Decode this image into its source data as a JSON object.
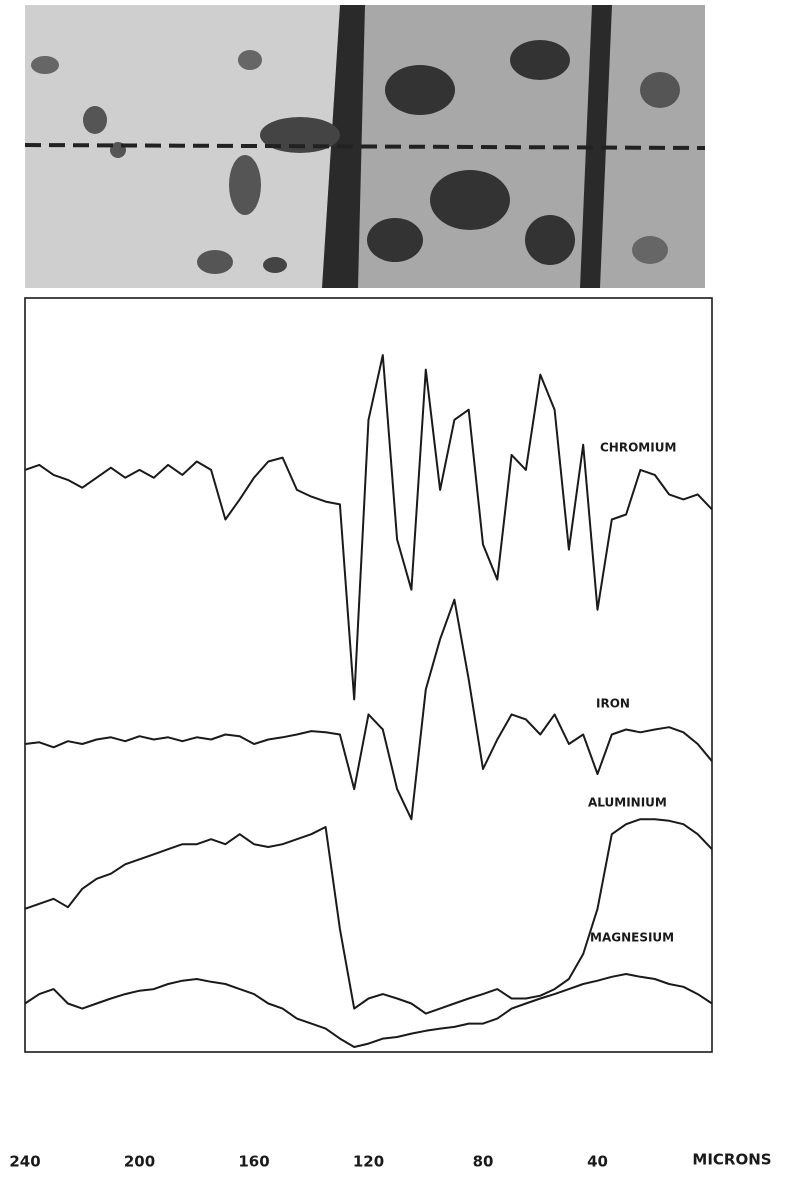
{
  "chart_data": {
    "type": "line",
    "xlabel": "MICRONS",
    "x": [
      240,
      235,
      230,
      225,
      220,
      215,
      210,
      205,
      200,
      195,
      190,
      185,
      180,
      175,
      170,
      165,
      160,
      155,
      150,
      145,
      140,
      135,
      130,
      125,
      120,
      115,
      110,
      105,
      100,
      95,
      90,
      85,
      80,
      75,
      70,
      65,
      60,
      55,
      50,
      45,
      40,
      35,
      30,
      25,
      20,
      15,
      10,
      5,
      0
    ],
    "xlim": [
      240,
      0
    ],
    "xticks": [
      240,
      200,
      160,
      120,
      80,
      40
    ],
    "ylim": [
      -35,
      100
    ],
    "series": [
      {
        "name": "CHROMIUM",
        "color": "#1a1a1a",
        "values": [
          69.5,
          70.4,
          68.6,
          67.7,
          66.3,
          68.1,
          69.9,
          68.1,
          69.5,
          68.1,
          70.4,
          68.6,
          71.0,
          69.5,
          60.6,
          64.2,
          68.1,
          71.0,
          71.7,
          65.9,
          64.7,
          63.8,
          63.3,
          28.3,
          78.5,
          90.1,
          57.0,
          48.0,
          87.5,
          65.9,
          78.5,
          80.3,
          56.1,
          49.8,
          72.2,
          69.5,
          86.6,
          80.3,
          55.2,
          74.0,
          44.4,
          60.6,
          61.5,
          69.5,
          68.6,
          65.1,
          64.2,
          65.1,
          62.4
        ]
      },
      {
        "name": "IRON",
        "color": "#1a1a1a",
        "values": [
          20.3,
          20.6,
          19.7,
          20.8,
          20.3,
          21.1,
          21.5,
          20.8,
          21.7,
          21.1,
          21.5,
          20.8,
          21.5,
          21.1,
          22.0,
          21.7,
          20.3,
          21.1,
          21.5,
          22.0,
          22.6,
          22.4,
          22.0,
          12.2,
          25.6,
          22.9,
          12.2,
          6.8,
          30.1,
          39.1,
          46.2,
          31.9,
          15.8,
          21.1,
          25.6,
          24.7,
          22.0,
          25.6,
          20.3,
          22.0,
          14.9,
          22.0,
          22.9,
          22.4,
          22.9,
          23.3,
          22.4,
          20.3,
          17.2
        ]
      },
      {
        "name": "ALUMINIUM",
        "color": "#1a1a1a",
        "values": [
          -9.3,
          -8.4,
          -7.5,
          -9.0,
          -5.7,
          -3.9,
          -3.0,
          -1.3,
          -0.4,
          0.5,
          1.4,
          2.3,
          2.3,
          3.2,
          2.3,
          4.1,
          2.3,
          1.8,
          2.3,
          3.2,
          4.1,
          5.4,
          -12.9,
          -27.2,
          -25.4,
          -24.6,
          -25.4,
          -26.3,
          -28.1,
          -27.2,
          -26.3,
          -25.4,
          -24.6,
          -23.7,
          -25.4,
          -25.4,
          -24.9,
          -23.7,
          -21.9,
          -17.4,
          -9.3,
          4.1,
          5.9,
          6.8,
          6.8,
          6.5,
          5.9,
          4.1,
          1.4
        ]
      },
      {
        "name": "MAGNESIUM",
        "color": "#1a1a1a",
        "values": [
          -26.3,
          -24.6,
          -23.7,
          -26.3,
          -27.2,
          -26.3,
          -25.4,
          -24.6,
          -24.0,
          -23.7,
          -22.8,
          -22.2,
          -21.9,
          -22.4,
          -22.8,
          -23.7,
          -24.6,
          -26.3,
          -27.2,
          -29.0,
          -29.9,
          -30.8,
          -32.6,
          -34.1,
          -33.5,
          -32.6,
          -32.3,
          -31.7,
          -31.2,
          -30.8,
          -30.5,
          -29.9,
          -29.9,
          -29.0,
          -27.2,
          -26.3,
          -25.4,
          -24.6,
          -23.7,
          -22.8,
          -22.2,
          -21.5,
          -21.0,
          -21.5,
          -21.9,
          -22.8,
          -23.3,
          -24.6,
          -26.3
        ]
      }
    ]
  }
}
